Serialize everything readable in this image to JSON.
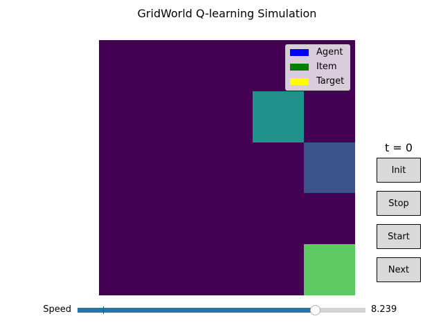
{
  "title": "GridWorld Q-learning Simulation",
  "grid": {
    "rows": 5,
    "cols": 5,
    "background_color": "#440154",
    "highlighted_cells": [
      {
        "row": 1,
        "col": 3,
        "color": "#21918c"
      },
      {
        "row": 2,
        "col": 4,
        "color": "#3b528b"
      },
      {
        "row": 4,
        "col": 4,
        "color": "#5ec962"
      }
    ]
  },
  "legend": {
    "items": [
      {
        "label": "Agent",
        "color": "#0000ff"
      },
      {
        "label": "Item",
        "color": "#008000"
      },
      {
        "label": "Target",
        "color": "#ffff00"
      }
    ]
  },
  "status": {
    "time_label": "t = 0"
  },
  "buttons": {
    "init": "Init",
    "stop": "Stop",
    "start": "Start",
    "next": "Next"
  },
  "speed": {
    "label": "Speed",
    "value_text": "8.239",
    "value": 8.239,
    "min": 0,
    "max": 10,
    "initial_value": 0.9,
    "fill_color": "#1f77b4",
    "track_color": "#d3d3d3",
    "initial_marker_color": "#ff0000"
  }
}
